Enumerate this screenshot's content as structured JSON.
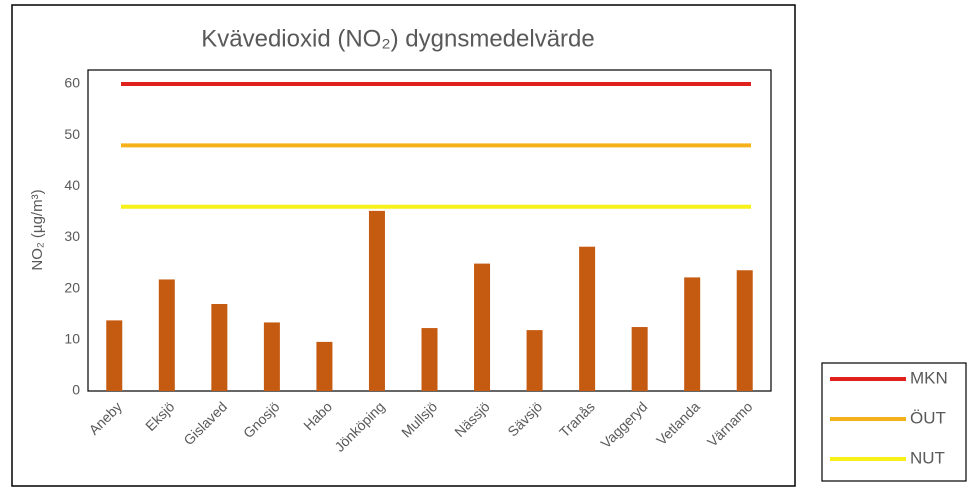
{
  "chart_data": {
    "type": "bar",
    "title": "Kvävedioxid (NO₂) dygnsmedelvärde",
    "y_label": "NO₂ (µg/m³)",
    "categories": [
      "Aneby",
      "Eksjö",
      "Gislaved",
      "Gnosjö",
      "Habo",
      "Jönköping",
      "Mullsjö",
      "Nässjö",
      "Sävsjö",
      "Tranås",
      "Vaggeryd",
      "Vetlanda",
      "Värnamo"
    ],
    "values": [
      13.8,
      21.8,
      17,
      13.4,
      9.6,
      35.2,
      12.3,
      24.9,
      11.9,
      28.2,
      12.5,
      22.2,
      23.6
    ],
    "color": "#c55a11",
    "reference_lines": [
      {
        "name": "MKN",
        "value": 60,
        "color": "#e0201b"
      },
      {
        "name": "ÖUT",
        "value": 48,
        "color": "#f5b11a"
      },
      {
        "name": "NUT",
        "value": 36,
        "color": "#f7f019"
      }
    ],
    "ylim": [
      0,
      60
    ],
    "yticks": [
      0,
      10,
      20,
      30,
      40,
      50,
      60
    ],
    "grid": false
  }
}
